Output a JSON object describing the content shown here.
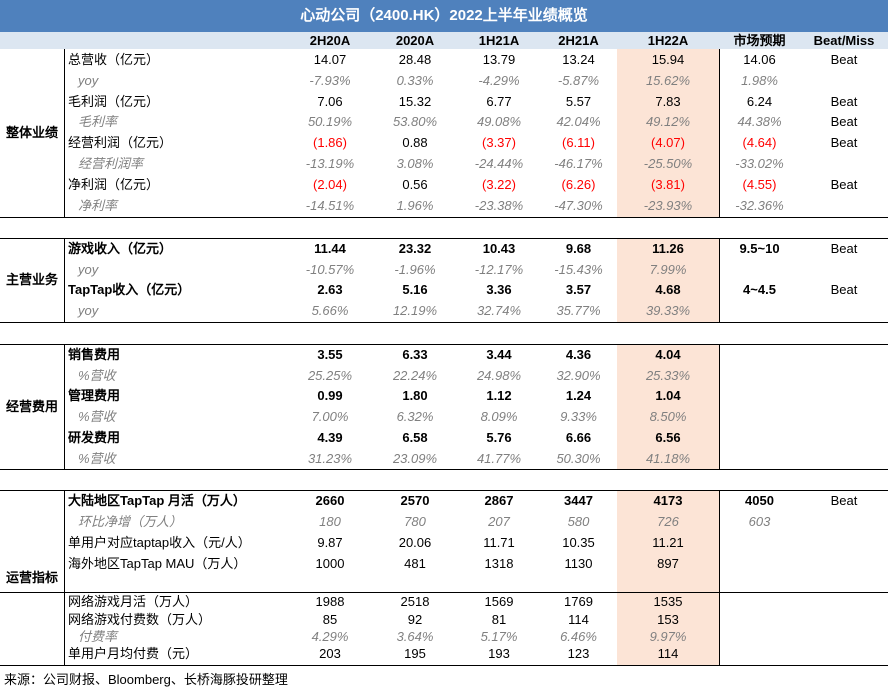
{
  "title": "心动公司（2400.HK）2022上半年业绩概览",
  "columns": [
    "2H20A",
    "2020A",
    "1H21A",
    "2H21A",
    "1H22A",
    "市场预期",
    "Beat/Miss"
  ],
  "sections": [
    {
      "name": "整体业绩",
      "rows": [
        {
          "label": "总营收（亿元）",
          "italic": false,
          "bold": false,
          "values": [
            "14.07",
            "28.48",
            "13.79",
            "13.24",
            "15.94",
            "14.06",
            "Beat"
          ],
          "red": []
        },
        {
          "label": "yoy",
          "italic": true,
          "bold": false,
          "values": [
            "-7.93%",
            "0.33%",
            "-4.29%",
            "-5.87%",
            "15.62%",
            "1.98%",
            ""
          ],
          "red": []
        },
        {
          "label": "毛利润（亿元）",
          "italic": false,
          "bold": false,
          "values": [
            "7.06",
            "15.32",
            "6.77",
            "5.57",
            "7.83",
            "6.24",
            "Beat"
          ],
          "red": []
        },
        {
          "label": "毛利率",
          "italic": true,
          "bold": false,
          "values": [
            "50.19%",
            "53.80%",
            "49.08%",
            "42.04%",
            "49.12%",
            "44.38%",
            "Beat"
          ],
          "red": []
        },
        {
          "label": "经营利润（亿元）",
          "italic": false,
          "bold": false,
          "values": [
            "(1.86)",
            "0.88",
            "(3.37)",
            "(6.11)",
            "(4.07)",
            "(4.64)",
            "Beat"
          ],
          "red": [
            0,
            2,
            3,
            4,
            5
          ]
        },
        {
          "label": "经营利润率",
          "italic": true,
          "bold": false,
          "values": [
            "-13.19%",
            "3.08%",
            "-24.44%",
            "-46.17%",
            "-25.50%",
            "-33.02%",
            ""
          ],
          "red": []
        },
        {
          "label": "净利润（亿元）",
          "italic": false,
          "bold": false,
          "values": [
            "(2.04)",
            "0.56",
            "(3.22)",
            "(6.26)",
            "(3.81)",
            "(4.55)",
            "Beat"
          ],
          "red": [
            0,
            2,
            3,
            4,
            5
          ]
        },
        {
          "label": "净利率",
          "italic": true,
          "bold": false,
          "values": [
            "-14.51%",
            "1.96%",
            "-23.38%",
            "-47.30%",
            "-23.93%",
            "-32.36%",
            ""
          ],
          "red": []
        }
      ]
    },
    {
      "name": "主营业务",
      "rows": [
        {
          "label": "游戏收入（亿元）",
          "italic": false,
          "bold": true,
          "values": [
            "11.44",
            "23.32",
            "10.43",
            "9.68",
            "11.26",
            "9.5~10",
            "Beat"
          ],
          "red": []
        },
        {
          "label": "yoy",
          "italic": true,
          "bold": false,
          "values": [
            "-10.57%",
            "-1.96%",
            "-12.17%",
            "-15.43%",
            "7.99%",
            "",
            ""
          ],
          "red": []
        },
        {
          "label": "TapTap收入（亿元）",
          "italic": false,
          "bold": true,
          "values": [
            "2.63",
            "5.16",
            "3.36",
            "3.57",
            "4.68",
            "4~4.5",
            "Beat"
          ],
          "red": []
        },
        {
          "label": "yoy",
          "italic": true,
          "bold": false,
          "values": [
            "5.66%",
            "12.19%",
            "32.74%",
            "35.77%",
            "39.33%",
            "",
            ""
          ],
          "red": []
        }
      ]
    },
    {
      "name": "经营费用",
      "rows": [
        {
          "label": "销售费用",
          "italic": false,
          "bold": true,
          "values": [
            "3.55",
            "6.33",
            "3.44",
            "4.36",
            "4.04",
            "",
            ""
          ],
          "red": []
        },
        {
          "label": "%营收",
          "italic": true,
          "bold": false,
          "values": [
            "25.25%",
            "22.24%",
            "24.98%",
            "32.90%",
            "25.33%",
            "",
            ""
          ],
          "red": []
        },
        {
          "label": "管理费用",
          "italic": false,
          "bold": true,
          "values": [
            "0.99",
            "1.80",
            "1.12",
            "1.24",
            "1.04",
            "",
            ""
          ],
          "red": []
        },
        {
          "label": "%营收",
          "italic": true,
          "bold": false,
          "values": [
            "7.00%",
            "6.32%",
            "8.09%",
            "9.33%",
            "8.50%",
            "",
            ""
          ],
          "red": []
        },
        {
          "label": "研发费用",
          "italic": false,
          "bold": true,
          "values": [
            "4.39",
            "6.58",
            "5.76",
            "6.66",
            "6.56",
            "",
            ""
          ],
          "red": []
        },
        {
          "label": "%营收",
          "italic": true,
          "bold": false,
          "values": [
            "31.23%",
            "23.09%",
            "41.77%",
            "50.30%",
            "41.18%",
            "",
            ""
          ],
          "red": []
        }
      ]
    },
    {
      "name": "运营指标",
      "rows": [
        {
          "label": "大陆地区TapTap 月活（万人）",
          "italic": false,
          "bold": true,
          "values": [
            "2660",
            "2570",
            "2867",
            "3447",
            "4173",
            "4050",
            "Beat"
          ],
          "red": []
        },
        {
          "label": "环比净增（万人）",
          "italic": true,
          "bold": false,
          "values": [
            "180",
            "780",
            "207",
            "580",
            "726",
            "603",
            ""
          ],
          "red": []
        },
        {
          "label": "单用户对应taptap收入（元/人）",
          "italic": false,
          "bold": false,
          "values": [
            "9.87",
            "20.06",
            "11.71",
            "10.35",
            "11.21",
            "",
            ""
          ],
          "red": []
        },
        {
          "label": "海外地区TapTap MAU（万人）",
          "italic": false,
          "bold": false,
          "values": [
            "1000",
            "481",
            "1318",
            "1130",
            "897",
            "",
            ""
          ],
          "red": []
        },
        {
          "label": "网络游戏月活（万人）",
          "italic": false,
          "bold": false,
          "values": [
            "1988",
            "2518",
            "1569",
            "1769",
            "1535",
            "",
            ""
          ],
          "red": []
        },
        {
          "label": "网络游戏付费数（万人）",
          "italic": false,
          "bold": false,
          "values": [
            "85",
            "92",
            "81",
            "114",
            "153",
            "",
            ""
          ],
          "red": []
        },
        {
          "label": "付费率",
          "italic": true,
          "bold": false,
          "values": [
            "4.29%",
            "3.64%",
            "5.17%",
            "6.46%",
            "9.97%",
            "",
            ""
          ],
          "red": []
        },
        {
          "label": "单用户月均付费（元）",
          "italic": false,
          "bold": false,
          "values": [
            "203",
            "195",
            "193",
            "123",
            "114",
            "",
            ""
          ],
          "red": []
        }
      ]
    }
  ],
  "footer": "来源：公司财报、Bloomberg、长桥海豚投研整理"
}
